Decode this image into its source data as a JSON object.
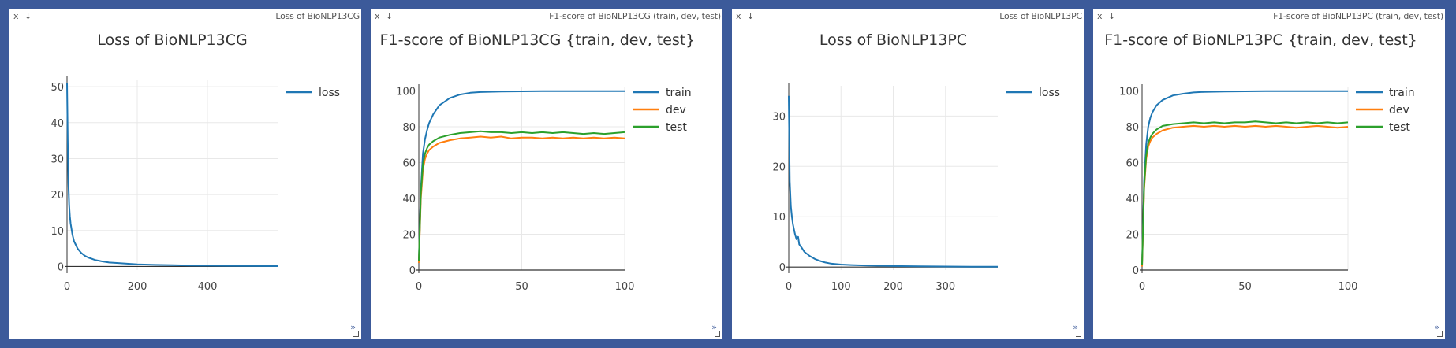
{
  "panels": [
    {
      "caption": "Loss of BioNLP13CG",
      "close_label": "x",
      "save_label": "↓",
      "resize_label": "»"
    },
    {
      "caption": "F1-score of BioNLP13CG (train, dev, test)",
      "close_label": "x",
      "save_label": "↓",
      "resize_label": "»"
    },
    {
      "caption": "Loss of BioNLP13PC",
      "close_label": "x",
      "save_label": "↓",
      "resize_label": "»"
    },
    {
      "caption": "F1-score of BioNLP13PC (train, dev, test)",
      "close_label": "x",
      "save_label": "↓",
      "resize_label": "»"
    }
  ],
  "colors": {
    "train": "#1f77b4",
    "loss": "#1f77b4",
    "dev": "#ff7f0e",
    "test": "#2ca02c",
    "background": "#3c5a9a",
    "grid": "#e8e8e8"
  },
  "chart_data": [
    {
      "type": "line",
      "title": "Loss of BioNLP13CG",
      "xlim": [
        0,
        600
      ],
      "ylim": [
        -1,
        52
      ],
      "xticks": [
        0,
        200,
        400
      ],
      "yticks": [
        0,
        10,
        20,
        30,
        40,
        50
      ],
      "grid": true,
      "legend_position": "top-right",
      "series": [
        {
          "name": "loss",
          "color": "#1f77b4",
          "x": [
            0,
            2,
            4,
            6,
            8,
            10,
            15,
            20,
            25,
            30,
            40,
            50,
            60,
            80,
            100,
            120,
            150,
            200,
            250,
            300,
            350,
            400,
            450,
            500,
            550,
            600
          ],
          "y": [
            51,
            35,
            23,
            17,
            14,
            12,
            9,
            7,
            6,
            5,
            3.8,
            3,
            2.5,
            1.8,
            1.4,
            1.1,
            0.9,
            0.6,
            0.45,
            0.35,
            0.28,
            0.22,
            0.18,
            0.15,
            0.12,
            0.1
          ]
        }
      ]
    },
    {
      "type": "line",
      "title": "F1-score of BioNLP13CG {train, dev, test}",
      "xlim": [
        0,
        100
      ],
      "ylim": [
        0,
        102
      ],
      "xticks": [
        0,
        50,
        100
      ],
      "yticks": [
        0,
        20,
        40,
        60,
        80,
        100
      ],
      "grid": true,
      "legend_position": "top-right",
      "series": [
        {
          "name": "train",
          "color": "#1f77b4",
          "x": [
            0,
            1,
            2,
            3,
            4,
            5,
            7,
            10,
            15,
            20,
            25,
            30,
            40,
            50,
            60,
            70,
            80,
            90,
            100
          ],
          "y": [
            5,
            45,
            65,
            73,
            78,
            82,
            87,
            92,
            96,
            98,
            99,
            99.4,
            99.7,
            99.8,
            99.9,
            99.9,
            99.9,
            99.9,
            99.9
          ]
        },
        {
          "name": "dev",
          "color": "#ff7f0e",
          "x": [
            0,
            1,
            2,
            3,
            4,
            5,
            7,
            10,
            15,
            20,
            25,
            30,
            35,
            40,
            45,
            50,
            55,
            60,
            65,
            70,
            75,
            80,
            85,
            90,
            95,
            100
          ],
          "y": [
            4,
            40,
            56,
            62,
            65,
            67,
            69,
            71,
            72.5,
            73.5,
            74,
            74.5,
            74,
            74.5,
            73.5,
            74,
            74,
            73.5,
            74,
            73.5,
            74,
            73.5,
            74,
            73.5,
            74,
            73.5
          ]
        },
        {
          "name": "test",
          "color": "#2ca02c",
          "x": [
            0,
            1,
            2,
            3,
            4,
            5,
            7,
            10,
            15,
            20,
            25,
            30,
            35,
            40,
            45,
            50,
            55,
            60,
            65,
            70,
            75,
            80,
            85,
            90,
            95,
            100
          ],
          "y": [
            5,
            43,
            59,
            65,
            68,
            70,
            72,
            74,
            75.5,
            76.5,
            77,
            77.5,
            77,
            77,
            76.5,
            77,
            76.5,
            77,
            76.5,
            77,
            76.5,
            76,
            76.5,
            76,
            76.5,
            77
          ]
        }
      ]
    },
    {
      "type": "line",
      "title": "Loss of BioNLP13PC",
      "xlim": [
        0,
        400
      ],
      "ylim": [
        -0.6,
        36
      ],
      "xticks": [
        0,
        100,
        200,
        300
      ],
      "yticks": [
        0,
        10,
        20,
        30
      ],
      "grid": true,
      "legend_position": "top-right",
      "series": [
        {
          "name": "loss",
          "color": "#1f77b4",
          "x": [
            0,
            1,
            2,
            4,
            6,
            8,
            10,
            12,
            15,
            18,
            20,
            25,
            30,
            35,
            40,
            50,
            60,
            70,
            80,
            100,
            120,
            150,
            200,
            250,
            300,
            350,
            400
          ],
          "y": [
            34,
            25,
            17,
            12,
            10,
            8.5,
            7.5,
            6.5,
            5.5,
            6,
            4.5,
            3.8,
            3,
            2.6,
            2.2,
            1.6,
            1.2,
            0.9,
            0.7,
            0.5,
            0.4,
            0.3,
            0.2,
            0.15,
            0.1,
            0.08,
            0.07
          ]
        }
      ]
    },
    {
      "type": "line",
      "title": "F1-score of BioNLP13PC {train, dev, test}",
      "xlim": [
        0,
        100
      ],
      "ylim": [
        0,
        102
      ],
      "xticks": [
        0,
        50,
        100
      ],
      "yticks": [
        0,
        20,
        40,
        60,
        80,
        100
      ],
      "grid": true,
      "legend_position": "top-right",
      "series": [
        {
          "name": "train",
          "color": "#1f77b4",
          "x": [
            0,
            1,
            2,
            3,
            4,
            5,
            7,
            10,
            15,
            20,
            25,
            30,
            40,
            50,
            60,
            70,
            80,
            90,
            100
          ],
          "y": [
            3,
            50,
            70,
            80,
            85,
            88,
            92,
            95,
            97.5,
            98.5,
            99.2,
            99.5,
            99.7,
            99.8,
            99.9,
            99.9,
            99.9,
            99.9,
            99.9
          ]
        },
        {
          "name": "dev",
          "color": "#ff7f0e",
          "x": [
            0,
            1,
            2,
            3,
            4,
            5,
            7,
            10,
            15,
            20,
            25,
            30,
            35,
            40,
            45,
            50,
            55,
            60,
            65,
            70,
            75,
            80,
            85,
            90,
            95,
            100
          ],
          "y": [
            2,
            45,
            62,
            69,
            72,
            74,
            76,
            78,
            79.5,
            80,
            80.5,
            80,
            80.5,
            80,
            80.5,
            80,
            80.5,
            80,
            80.5,
            80,
            79.5,
            80,
            80.5,
            80,
            79.5,
            80
          ]
        },
        {
          "name": "test",
          "color": "#2ca02c",
          "x": [
            0,
            1,
            2,
            3,
            4,
            5,
            7,
            10,
            15,
            20,
            25,
            30,
            35,
            40,
            45,
            50,
            55,
            60,
            65,
            70,
            75,
            80,
            85,
            90,
            95,
            100
          ],
          "y": [
            3,
            47,
            64,
            71,
            74,
            76,
            78.5,
            80.5,
            81.5,
            82,
            82.5,
            82,
            82.5,
            82,
            82.5,
            82.5,
            83,
            82.5,
            82,
            82.5,
            82,
            82.5,
            82,
            82.5,
            82,
            82.5
          ]
        }
      ]
    }
  ]
}
